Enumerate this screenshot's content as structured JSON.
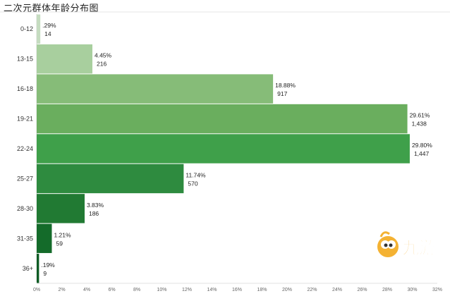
{
  "chart_data": {
    "type": "bar",
    "orientation": "horizontal",
    "title": "二次元群体年龄分布图",
    "categories": [
      "0-12",
      "13-15",
      "16-18",
      "19-21",
      "22-24",
      "25-27",
      "28-30",
      "31-35",
      "36+"
    ],
    "series": [
      {
        "values": [
          0.29,
          4.45,
          18.88,
          29.61,
          29.8,
          11.74,
          3.83,
          1.21,
          0.19
        ],
        "value_labels": [
          ".29%",
          "4.45%",
          "18.88%",
          "29.61%",
          "29.80%",
          "11.74%",
          "3.83%",
          "1.21%",
          ".19%"
        ],
        "counts": [
          "14",
          "216",
          "917",
          "1,438",
          "1,447",
          "570",
          "186",
          "59",
          "9"
        ]
      }
    ],
    "colors": [
      "#c5dcc0",
      "#a8cf9e",
      "#86bc78",
      "#6aae5e",
      "#3fa04a",
      "#2e8b3f",
      "#217a33",
      "#146b2a",
      "#0e5c24"
    ],
    "xlim": [
      0,
      32
    ],
    "xticks": [
      "0%",
      "2%",
      "4%",
      "6%",
      "8%",
      "10%",
      "12%",
      "14%",
      "16%",
      "18%",
      "20%",
      "22%",
      "24%",
      "26%",
      "28%",
      "30%",
      "32%"
    ],
    "xlabel": "",
    "ylabel": "",
    "grid": false,
    "legend": "none"
  },
  "watermark": {
    "text": "九游"
  }
}
